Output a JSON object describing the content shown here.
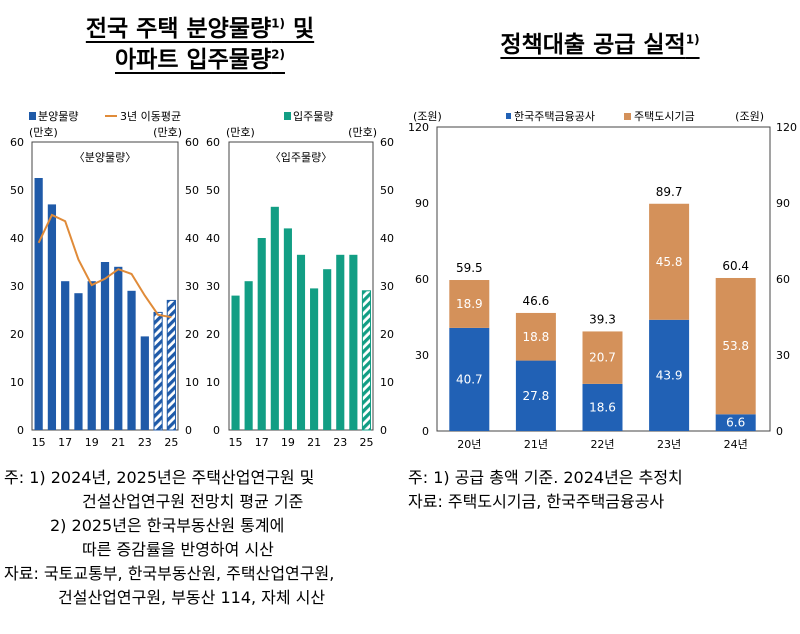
{
  "left_title": {
    "line1": "전국 주택 분양물량",
    "sup1": "1)",
    "line1b": " 및",
    "line2": "아파트 입주물량",
    "sup2": "2)"
  },
  "right_title": {
    "text": "정책대출 공급 실적",
    "sup": "1)"
  },
  "colors": {
    "blue": "#1F5AA8",
    "orange": "#E08B39",
    "green": "#129E84",
    "rust": "#D4915A",
    "navy": "#2161B5"
  },
  "chart_data": [
    {
      "type": "bar",
      "id": "sale-volume",
      "inner_label": "〈분양물량〉",
      "legend": [
        {
          "name": "분양물량",
          "kind": "bar",
          "color": "#1F5AA8"
        },
        {
          "name": "3년 이동평균",
          "kind": "line",
          "color": "#E08B39"
        }
      ],
      "ylabel_left": "(만호)",
      "ylabel_right": "(만호)",
      "ylim": [
        0,
        60
      ],
      "yticks": [
        0,
        10,
        20,
        30,
        40,
        50,
        60
      ],
      "x": [
        15,
        16,
        17,
        18,
        19,
        20,
        21,
        22,
        23,
        24,
        25
      ],
      "xtick_labels": [
        "15",
        "17",
        "19",
        "21",
        "23",
        "25"
      ],
      "series": [
        {
          "name": "분양물량",
          "values": [
            52.5,
            47,
            31,
            28.5,
            31,
            35,
            34,
            29,
            19.5,
            24.5,
            27
          ],
          "hatched_from_index": 9
        },
        {
          "name": "3년 이동평균",
          "type": "line",
          "x": [
            15,
            16,
            17,
            18,
            19,
            20,
            21,
            22,
            23,
            24,
            25
          ],
          "values": [
            39,
            44.8,
            43.5,
            35.5,
            30.2,
            31.5,
            33.5,
            32.5,
            28,
            24,
            23.5
          ]
        }
      ]
    },
    {
      "type": "bar",
      "id": "move-in-volume",
      "inner_label": "〈입주물량〉",
      "legend": [
        {
          "name": "입주물량",
          "kind": "bar",
          "color": "#129E84"
        }
      ],
      "ylabel_left": "(만호)",
      "ylabel_right": "(만호)",
      "ylim": [
        0,
        60
      ],
      "yticks": [
        0,
        10,
        20,
        30,
        40,
        50,
        60
      ],
      "x": [
        15,
        16,
        17,
        18,
        19,
        20,
        21,
        22,
        23,
        24,
        25
      ],
      "xtick_labels": [
        "15",
        "17",
        "19",
        "21",
        "23",
        "25"
      ],
      "series": [
        {
          "name": "입주물량",
          "values": [
            28,
            31,
            40,
            46.5,
            42,
            36.5,
            29.5,
            33.5,
            36.5,
            36.5,
            29
          ],
          "hatched_from_index": 10
        }
      ]
    },
    {
      "type": "bar",
      "id": "policy-loans",
      "stacked": true,
      "ylabel_left": "(조원)",
      "ylabel_right": "(조원)",
      "legend": [
        {
          "name": "한국주택금융공사",
          "color": "#2161B5"
        },
        {
          "name": "주택도시기금",
          "color": "#D4915A"
        }
      ],
      "ylim": [
        0,
        120
      ],
      "yticks": [
        0,
        30,
        60,
        90,
        120
      ],
      "categories": [
        "20년",
        "21년",
        "22년",
        "23년",
        "24년"
      ],
      "series": [
        {
          "name": "한국주택금융공사",
          "values": [
            40.7,
            27.8,
            18.6,
            43.9,
            6.6
          ],
          "labels": [
            "40.7",
            "27.8",
            "18.6",
            "43.9",
            "6.6"
          ]
        },
        {
          "name": "주택도시기금",
          "values": [
            18.9,
            18.8,
            20.7,
            45.8,
            53.8
          ],
          "labels": [
            "18.9",
            "18.8",
            "20.7",
            "45.8",
            "53.8"
          ]
        }
      ],
      "totals": [
        "59.5",
        "46.6",
        "39.3",
        "89.7",
        "60.4"
      ]
    }
  ],
  "notes_left": {
    "l1": "주:  1)  2024년, 2025년은 주택산업연구원 및",
    "l2": "건설산업연구원 전망치 평균 기준",
    "l3": "2)  2025년은 한국부동산원 통계에",
    "l4": "따른 증감률을 반영하여 시산",
    "l5": "자료:  국토교통부, 한국부동산원, 주택산업연구원,",
    "l6": "건설산업연구원, 부동산 114, 자체 시산"
  },
  "notes_right": {
    "l1": "주:  1)  공급 총액 기준. 2024년은 추정치",
    "l2": "자료:  주택도시기금, 한국주택금융공사"
  }
}
